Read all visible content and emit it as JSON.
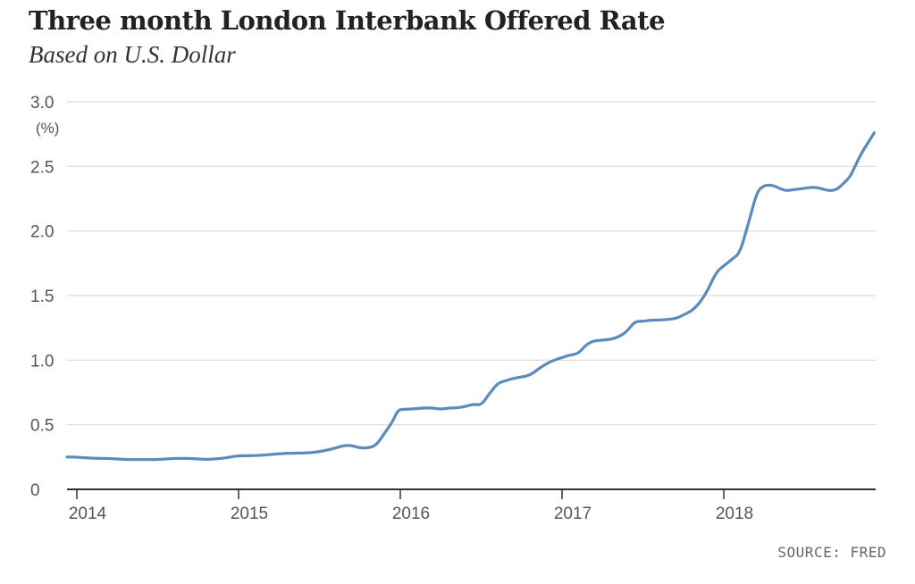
{
  "header": {
    "title": "Three month London Interbank Offered Rate",
    "subtitle": "Based on U.S. Dollar"
  },
  "footer": {
    "source": "SOURCE: FRED"
  },
  "colors": {
    "line": "#5a8bbf",
    "grid": "#d9d9d9",
    "axis": "#333333",
    "text": "#555555"
  },
  "chart_data": {
    "type": "line",
    "title": "Three month London Interbank Offered Rate",
    "subtitle": "Based on U.S. Dollar",
    "ylabel": "(%)",
    "xlabel": "",
    "ylim": [
      0,
      3.0
    ],
    "xlim": [
      2014.0,
      2018.93
    ],
    "y_ticks": [
      0,
      0.5,
      1.0,
      1.5,
      2.0,
      2.5,
      3.0
    ],
    "y_tick_labels": [
      "0",
      "0.5",
      "1.0",
      "1.5",
      "2.0",
      "2.5",
      "3.0"
    ],
    "x_ticks": [
      2014,
      2015,
      2016,
      2017,
      2018
    ],
    "x_tick_labels": [
      "2014",
      "2015",
      "2016",
      "2017",
      "2018"
    ],
    "grid": "horizontal",
    "series": [
      {
        "x": [
          2013.93,
          2014.0,
          2014.1,
          2014.2,
          2014.3,
          2014.4,
          2014.5,
          2014.6,
          2014.7,
          2014.8,
          2014.9,
          2014.95,
          2015.0,
          2015.1,
          2015.2,
          2015.3,
          2015.4,
          2015.5,
          2015.6,
          2015.65,
          2015.7,
          2015.75,
          2015.8,
          2015.85,
          2015.9,
          2015.95,
          2015.98,
          2016.0,
          2016.05,
          2016.15,
          2016.2,
          2016.25,
          2016.3,
          2016.35,
          2016.4,
          2016.45,
          2016.5,
          2016.55,
          2016.6,
          2016.65,
          2016.7,
          2016.8,
          2016.85,
          2016.9,
          2016.95,
          2017.0,
          2017.05,
          2017.1,
          2017.15,
          2017.18,
          2017.2,
          2017.3,
          2017.35,
          2017.4,
          2017.45,
          2017.5,
          2017.55,
          2017.6,
          2017.7,
          2017.75,
          2017.8,
          2017.85,
          2017.9,
          2017.93,
          2017.96,
          2018.0,
          2018.05,
          2018.1,
          2018.15,
          2018.2,
          2018.23,
          2018.28,
          2018.33,
          2018.38,
          2018.43,
          2018.5,
          2018.55,
          2018.6,
          2018.65,
          2018.7,
          2018.75,
          2018.78,
          2018.8,
          2018.85,
          2018.9,
          2018.93
        ],
        "values": [
          0.25,
          0.25,
          0.24,
          0.24,
          0.23,
          0.23,
          0.23,
          0.24,
          0.24,
          0.23,
          0.24,
          0.25,
          0.26,
          0.26,
          0.27,
          0.28,
          0.28,
          0.29,
          0.32,
          0.34,
          0.34,
          0.32,
          0.32,
          0.34,
          0.43,
          0.52,
          0.6,
          0.62,
          0.62,
          0.63,
          0.63,
          0.62,
          0.63,
          0.63,
          0.64,
          0.66,
          0.65,
          0.74,
          0.82,
          0.84,
          0.86,
          0.88,
          0.93,
          0.97,
          1.0,
          1.02,
          1.04,
          1.05,
          1.12,
          1.14,
          1.15,
          1.16,
          1.18,
          1.22,
          1.3,
          1.3,
          1.31,
          1.31,
          1.32,
          1.35,
          1.38,
          1.44,
          1.54,
          1.62,
          1.69,
          1.73,
          1.78,
          1.83,
          2.05,
          2.28,
          2.34,
          2.36,
          2.34,
          2.31,
          2.32,
          2.33,
          2.34,
          2.33,
          2.31,
          2.32,
          2.38,
          2.42,
          2.47,
          2.6,
          2.7,
          2.76
        ]
      }
    ]
  }
}
